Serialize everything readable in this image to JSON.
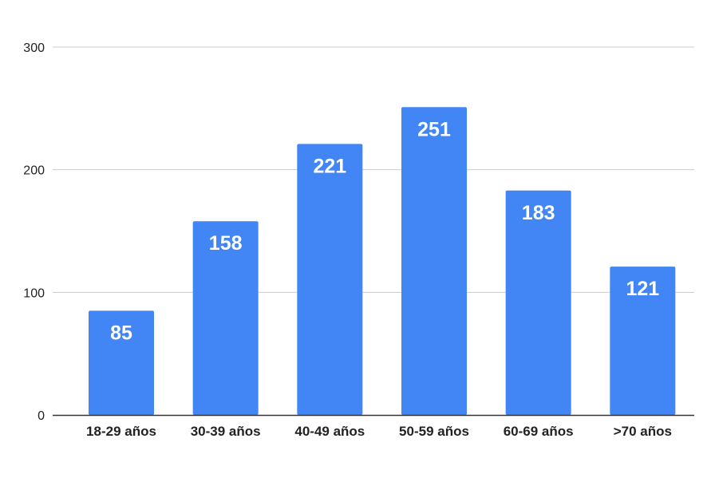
{
  "chart_data": {
    "type": "bar",
    "categories": [
      "18-29 años",
      "30-39 años",
      "40-49 años",
      "50-59 años",
      "60-69 años",
      ">70 años"
    ],
    "values": [
      85,
      158,
      221,
      251,
      183,
      121
    ],
    "data_labels": [
      "85",
      "158",
      "221",
      "251",
      "183",
      "121"
    ],
    "title": "",
    "xlabel": "",
    "ylabel": "",
    "ylim": [
      0,
      300
    ],
    "yticks": [
      "0",
      "100",
      "200",
      "300"
    ],
    "grid": true,
    "legend": "none",
    "colors": {
      "bar": "#4285f4",
      "grid": "#cccccc",
      "axis": "#333333",
      "bar_label": "#ffffff",
      "tick_text": "#222222"
    }
  }
}
